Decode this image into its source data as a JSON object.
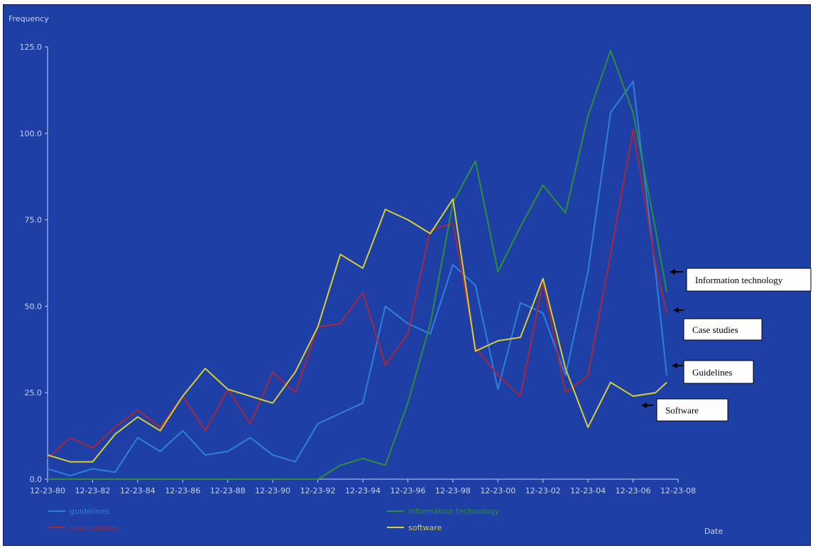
{
  "chart_data": {
    "type": "line",
    "ylabel": "Frequency",
    "xlabel": "Date",
    "ylim": [
      0,
      125
    ],
    "yticks": [
      "0.0",
      "25.0",
      "50.0",
      "75.0",
      "100.0",
      "125.0"
    ],
    "ytick_values": [
      0,
      25,
      50,
      75,
      100,
      125
    ],
    "xticks": [
      "12-23-80",
      "12-23-82",
      "12-23-84",
      "12-23-86",
      "12-23-88",
      "12-23-90",
      "12-23-92",
      "12-23-94",
      "12-23-96",
      "12-23-98",
      "12-23-00",
      "12-23-02",
      "12-23-04",
      "12-23-06",
      "12-23-08"
    ],
    "xtick_years": [
      1980,
      1982,
      1984,
      1986,
      1988,
      1990,
      1992,
      1994,
      1996,
      1998,
      2000,
      2002,
      2004,
      2006,
      2008
    ],
    "xlim": [
      1980,
      2008
    ],
    "x": [
      1980,
      1981,
      1982,
      1983,
      1984,
      1985,
      1986,
      1987,
      1988,
      1989,
      1990,
      1991,
      1992,
      1993,
      1994,
      1995,
      1996,
      1997,
      1998,
      1999,
      2000,
      2001,
      2002,
      2003,
      2004,
      2005,
      2006,
      2007,
      2007.5
    ],
    "series": [
      {
        "name": "guidelines",
        "color": "#2f7fe0",
        "values": [
          3,
          1,
          3,
          2,
          12,
          8,
          14,
          7,
          8,
          12,
          7,
          5,
          16,
          19,
          22,
          50,
          45,
          42,
          62,
          56,
          26,
          51,
          48,
          30,
          60,
          106,
          115,
          60,
          30
        ]
      },
      {
        "name": "case studies",
        "color": "#a8283a",
        "values": [
          6,
          12,
          9,
          15,
          20,
          15,
          24,
          14,
          26,
          16,
          31,
          25,
          44,
          45,
          54,
          33,
          42,
          72,
          74,
          38,
          30,
          24,
          57,
          25,
          30,
          65,
          101,
          62,
          48
        ]
      },
      {
        "name": "information technology",
        "color": "#2d8f3a",
        "values": [
          0,
          0,
          0,
          0,
          0,
          0,
          0,
          0,
          0,
          0,
          0,
          0,
          0,
          4,
          6,
          4,
          22,
          45,
          80,
          92,
          60,
          73,
          85,
          77,
          105,
          124,
          106,
          72,
          54
        ]
      },
      {
        "name": "software",
        "color": "#d6d032",
        "values": [
          7,
          5,
          5,
          13,
          18,
          14,
          24,
          32,
          26,
          24,
          22,
          31,
          44,
          65,
          61,
          78,
          75,
          71,
          81,
          37,
          40,
          41,
          58,
          32,
          15,
          28,
          24,
          25,
          28
        ]
      }
    ],
    "legend": [
      "guidelines",
      "information technology",
      "case studies",
      "software"
    ],
    "legend_placement": "bottom",
    "grid": false,
    "annotations": [
      {
        "text": "Information technology",
        "series": "information technology"
      },
      {
        "text": "Case studies",
        "series": "case studies"
      },
      {
        "text": "Guidelines",
        "series": "guidelines"
      },
      {
        "text": "Software",
        "series": "software"
      }
    ]
  },
  "colors": {
    "background": "#1d3fa6",
    "axis": "#c8d2f2",
    "callout_arrow": "#000000"
  }
}
